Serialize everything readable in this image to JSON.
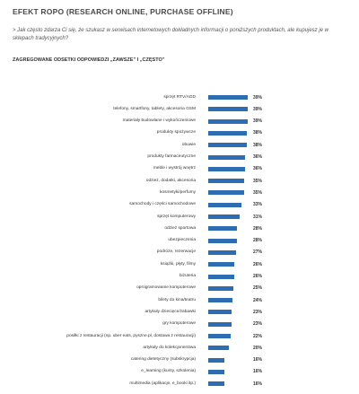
{
  "chart_data": {
    "type": "bar",
    "orientation": "horizontal",
    "title": "EFEKT ROPO (RESEARCH ONLINE, PURCHASE OFFLINE)",
    "subtitle": "> Jak często zdarza Ci się, że szukasz w serwisach internetowych dokładnych informacji o poniższych produktach, ale kupujesz je w sklepach tradycyjnych?",
    "note": "ZAGREGOWANE ODSETKI ODPOWIEDZI „ZAWSZE” I „CZĘSTO”",
    "color": "#2f6db3",
    "categories": [
      "sprzęt RTV/AGD",
      "telefony, smartfony, tablety, akcesoria GSM",
      "materiały budowlane i wykończeniowe",
      "produkty spożywcze",
      "obuwie",
      "produkty farmaceutyczne",
      "meble i wystrój wnętrz",
      "odzież, dodatki, akcesoria",
      "kosmetyki/perfumy",
      "samochody i części samochodowe",
      "sprzęt komputerowy",
      "odzież sportowa",
      "ubezpieczenia",
      "podróże, rezerwacje",
      "książki, płyty, filmy",
      "biżuteria",
      "oprogramowanie komputerowe",
      "bilety do kina/teatru",
      "artykuły dziecięce/zabawki",
      "gry komputerowe",
      "posiłki z restauracji (np. uber eats, pyszne.pl, dostawa z restauracji)",
      "artykuły do kolekcjonerstwa",
      "catering dietetyczny (subskrypcja)",
      "e_learning (kursy, szkolenia)",
      "multimedia (aplikacje, e_booki itp.)"
    ],
    "values": [
      39,
      39,
      39,
      38,
      38,
      36,
      36,
      35,
      35,
      33,
      31,
      28,
      28,
      27,
      26,
      26,
      25,
      24,
      23,
      23,
      22,
      20,
      16,
      16,
      16
    ],
    "value_labels": [
      "39%",
      "39%",
      "39%",
      "38%",
      "38%",
      "36%",
      "36%",
      "35%",
      "35%",
      "33%",
      "31%",
      "28%",
      "28%",
      "27%",
      "26%",
      "26%",
      "25%",
      "24%",
      "23%",
      "23%",
      "22%",
      "20%",
      "16%",
      "16%",
      "16%"
    ]
  }
}
